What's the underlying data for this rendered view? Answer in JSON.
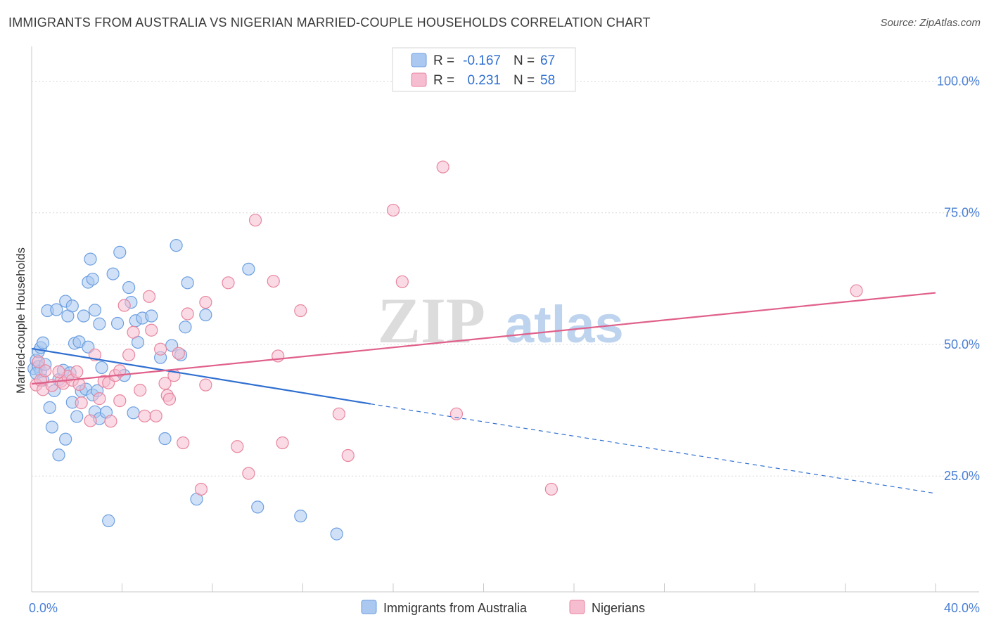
{
  "chart_data": {
    "type": "scatter",
    "title": "IMMIGRANTS FROM AUSTRALIA VS NIGERIAN MARRIED-COUPLE HOUSEHOLDS CORRELATION CHART",
    "source": "Source: ZipAtlas.com",
    "ylabel": "Married-couple Households",
    "xlabel": "",
    "xlim": [
      0,
      40
    ],
    "ylim": [
      3,
      105
    ],
    "x_tick_labels": [
      {
        "value": 0,
        "label": "0.0%"
      },
      {
        "value": 40,
        "label": "40.0%"
      }
    ],
    "y_tick_labels": [
      {
        "value": 25,
        "label": "25.0%"
      },
      {
        "value": 50,
        "label": "50.0%"
      },
      {
        "value": 75,
        "label": "75.0%"
      },
      {
        "value": 100,
        "label": "100.0%"
      }
    ],
    "watermark": {
      "part1": "ZIP",
      "part2": "atlas"
    },
    "legend_box": [
      {
        "r_label": "R =",
        "r_value": "-0.167",
        "n_label": "N =",
        "n_value": "67"
      },
      {
        "r_label": "R =",
        "r_value": "0.231",
        "n_label": "N =",
        "n_value": "58"
      }
    ],
    "series": [
      {
        "name": "Immigrants from Australia",
        "fill": "#aac8f0",
        "stroke": "#6d9fe0",
        "line_color": "#2f6fd0",
        "trend": {
          "x0": 0,
          "y0": 49.2,
          "x1": 15,
          "y1": 38.7,
          "dash_x1": 40,
          "dash_y1": 21.7
        },
        "points": [
          [
            0.1,
            45.4
          ],
          [
            0.2,
            47.0
          ],
          [
            0.3,
            48.6
          ],
          [
            0.4,
            49.4
          ],
          [
            0.5,
            50.3
          ],
          [
            0.3,
            45.8
          ],
          [
            0.4,
            44.9
          ],
          [
            0.6,
            46.2
          ],
          [
            0.7,
            56.4
          ],
          [
            0.8,
            38.0
          ],
          [
            0.9,
            34.3
          ],
          [
            1.0,
            41.2
          ],
          [
            1.1,
            56.6
          ],
          [
            1.2,
            43.3
          ],
          [
            1.2,
            29.0
          ],
          [
            1.4,
            45.1
          ],
          [
            1.5,
            58.2
          ],
          [
            1.5,
            32.0
          ],
          [
            1.6,
            55.4
          ],
          [
            1.7,
            44.6
          ],
          [
            1.8,
            39.0
          ],
          [
            1.8,
            57.3
          ],
          [
            1.9,
            50.2
          ],
          [
            2.0,
            36.3
          ],
          [
            2.1,
            50.5
          ],
          [
            2.2,
            41.1
          ],
          [
            2.3,
            55.4
          ],
          [
            2.4,
            41.5
          ],
          [
            2.5,
            49.5
          ],
          [
            2.5,
            61.8
          ],
          [
            2.6,
            66.2
          ],
          [
            2.7,
            62.4
          ],
          [
            2.7,
            40.4
          ],
          [
            2.8,
            37.2
          ],
          [
            2.9,
            41.2
          ],
          [
            2.8,
            56.5
          ],
          [
            3.0,
            53.9
          ],
          [
            3.0,
            35.9
          ],
          [
            3.1,
            45.6
          ],
          [
            3.3,
            37.1
          ],
          [
            3.6,
            63.4
          ],
          [
            3.4,
            16.5
          ],
          [
            3.8,
            54.0
          ],
          [
            3.9,
            67.5
          ],
          [
            4.1,
            44.1
          ],
          [
            4.3,
            60.8
          ],
          [
            4.4,
            58.0
          ],
          [
            4.5,
            37.0
          ],
          [
            4.6,
            54.5
          ],
          [
            4.7,
            50.4
          ],
          [
            4.9,
            55.0
          ],
          [
            5.3,
            55.4
          ],
          [
            5.7,
            47.5
          ],
          [
            5.9,
            32.1
          ],
          [
            6.2,
            49.8
          ],
          [
            6.4,
            68.8
          ],
          [
            6.6,
            48.0
          ],
          [
            6.8,
            53.3
          ],
          [
            6.9,
            61.7
          ],
          [
            7.3,
            20.6
          ],
          [
            7.7,
            55.6
          ],
          [
            9.6,
            64.3
          ],
          [
            10.0,
            19.1
          ],
          [
            11.9,
            17.4
          ],
          [
            13.5,
            14.0
          ],
          [
            0.2,
            44.5
          ],
          [
            0.5,
            43.2
          ]
        ]
      },
      {
        "name": "Nigerians",
        "fill": "#f6bcd0",
        "stroke": "#e8869f",
        "line_color": "#e0608a",
        "trend": {
          "x0": 0,
          "y0": 42.5,
          "x1": 40,
          "y1": 59.8
        },
        "points": [
          [
            0.2,
            42.3
          ],
          [
            0.4,
            43.2
          ],
          [
            0.5,
            41.4
          ],
          [
            0.6,
            45.0
          ],
          [
            0.9,
            42.2
          ],
          [
            1.3,
            43.0
          ],
          [
            1.4,
            42.6
          ],
          [
            1.6,
            43.9
          ],
          [
            1.8,
            43.2
          ],
          [
            2.0,
            44.8
          ],
          [
            2.1,
            42.4
          ],
          [
            2.2,
            38.9
          ],
          [
            2.6,
            35.5
          ],
          [
            2.8,
            48.0
          ],
          [
            3.0,
            39.7
          ],
          [
            3.2,
            43.0
          ],
          [
            3.4,
            42.7
          ],
          [
            3.5,
            35.4
          ],
          [
            3.7,
            44.1
          ],
          [
            3.9,
            39.3
          ],
          [
            3.9,
            45.0
          ],
          [
            4.1,
            57.4
          ],
          [
            4.3,
            48.0
          ],
          [
            4.5,
            52.3
          ],
          [
            4.8,
            41.3
          ],
          [
            5.0,
            36.4
          ],
          [
            5.2,
            59.1
          ],
          [
            5.3,
            52.7
          ],
          [
            5.5,
            36.4
          ],
          [
            5.7,
            49.1
          ],
          [
            5.9,
            42.6
          ],
          [
            6.0,
            40.3
          ],
          [
            6.1,
            39.6
          ],
          [
            6.3,
            44.1
          ],
          [
            6.5,
            48.3
          ],
          [
            6.7,
            31.3
          ],
          [
            6.9,
            55.8
          ],
          [
            7.5,
            22.5
          ],
          [
            7.7,
            42.3
          ],
          [
            7.7,
            58.0
          ],
          [
            8.7,
            61.7
          ],
          [
            9.1,
            30.6
          ],
          [
            9.6,
            25.5
          ],
          [
            9.9,
            73.6
          ],
          [
            10.7,
            62.0
          ],
          [
            10.9,
            47.8
          ],
          [
            11.1,
            31.3
          ],
          [
            11.9,
            56.4
          ],
          [
            13.6,
            36.8
          ],
          [
            14.0,
            28.9
          ],
          [
            16.0,
            75.5
          ],
          [
            16.4,
            61.9
          ],
          [
            18.2,
            83.7
          ],
          [
            18.8,
            36.8
          ],
          [
            23.0,
            22.5
          ],
          [
            36.5,
            60.2
          ],
          [
            0.3,
            46.7
          ],
          [
            1.2,
            44.8
          ]
        ]
      }
    ]
  }
}
